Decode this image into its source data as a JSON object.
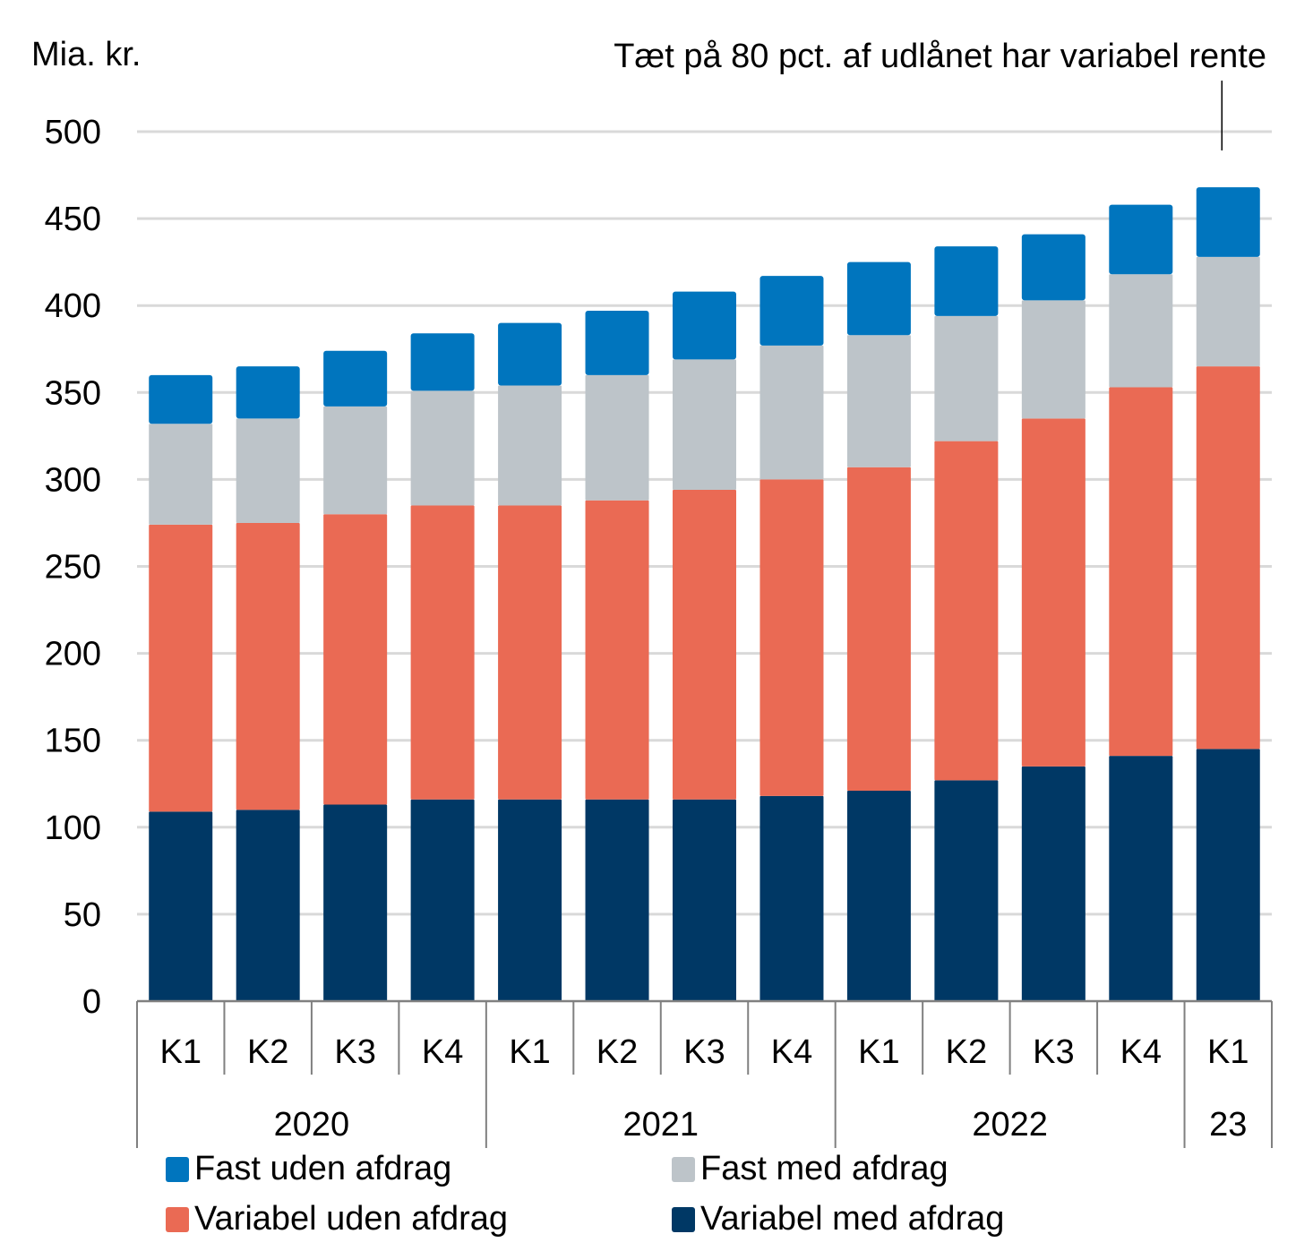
{
  "chart_data": {
    "type": "bar",
    "stacked": true,
    "title": "",
    "annotation": "Tæt på 80 pct. af udlånet har variabel rente",
    "ylabel": "Mia. kr.",
    "xlabel": "",
    "ylim": [
      0,
      500
    ],
    "yticks": [
      0,
      50,
      100,
      150,
      200,
      250,
      300,
      350,
      400,
      450,
      500
    ],
    "grid": true,
    "legend_position": "bottom",
    "categories": [
      "K1",
      "K2",
      "K3",
      "K4",
      "K1",
      "K2",
      "K3",
      "K4",
      "K1",
      "K2",
      "K3",
      "K4",
      "K1"
    ],
    "year_groups": [
      {
        "label": "2020",
        "count": 4
      },
      {
        "label": "2021",
        "count": 4
      },
      {
        "label": "2022",
        "count": 4
      },
      {
        "label": "23",
        "count": 1
      }
    ],
    "series": [
      {
        "name": "Variabel med afdrag",
        "color": "#003865",
        "values": [
          109,
          110,
          113,
          116,
          116,
          116,
          116,
          118,
          121,
          127,
          135,
          141,
          145
        ]
      },
      {
        "name": "Variabel uden afdrag",
        "color": "#EA6A54",
        "values": [
          165,
          165,
          167,
          169,
          169,
          172,
          178,
          182,
          186,
          195,
          200,
          212,
          220
        ]
      },
      {
        "name": "Fast med afdrag",
        "color": "#BDC4C9",
        "values": [
          58,
          60,
          62,
          66,
          69,
          72,
          75,
          77,
          76,
          72,
          68,
          65,
          63
        ]
      },
      {
        "name": "Fast uden afdrag",
        "color": "#0075BE",
        "values": [
          28,
          30,
          32,
          33,
          36,
          37,
          39,
          40,
          42,
          40,
          38,
          40,
          40
        ]
      }
    ]
  },
  "legend": [
    {
      "name": "Fast uden afdrag",
      "color": "#0075BE"
    },
    {
      "name": "Fast med afdrag",
      "color": "#BDC4C9"
    },
    {
      "name": "Variabel uden afdrag",
      "color": "#EA6A54"
    },
    {
      "name": "Variabel med afdrag",
      "color": "#003865"
    }
  ]
}
